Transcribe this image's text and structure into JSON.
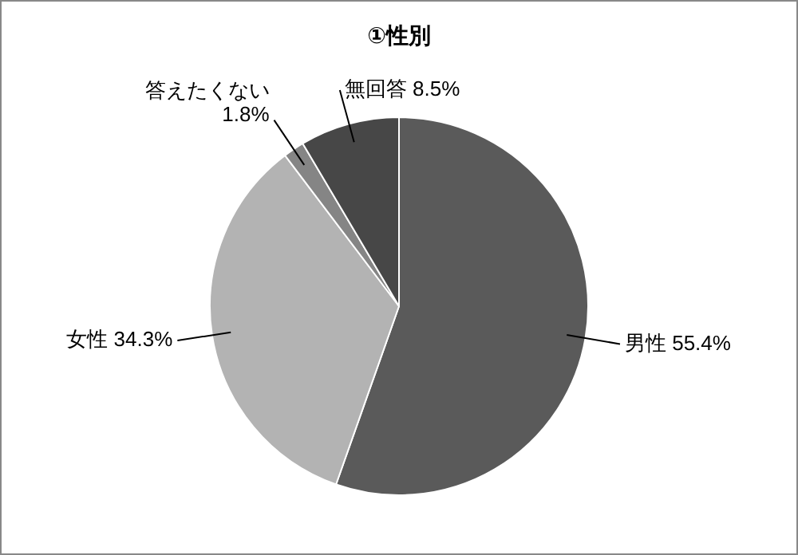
{
  "chart_data": {
    "type": "pie",
    "title": "①性別",
    "categories": [
      "男性",
      "女性",
      "答えたくない",
      "無回答"
    ],
    "values": [
      55.4,
      34.3,
      1.8,
      8.5
    ],
    "colors": [
      "#5a5a5a",
      "#b3b3b3",
      "#858585",
      "#474747"
    ],
    "value_labels": [
      "55.4%",
      "34.3%",
      "1.8%",
      "8.5%"
    ],
    "legend": false
  }
}
